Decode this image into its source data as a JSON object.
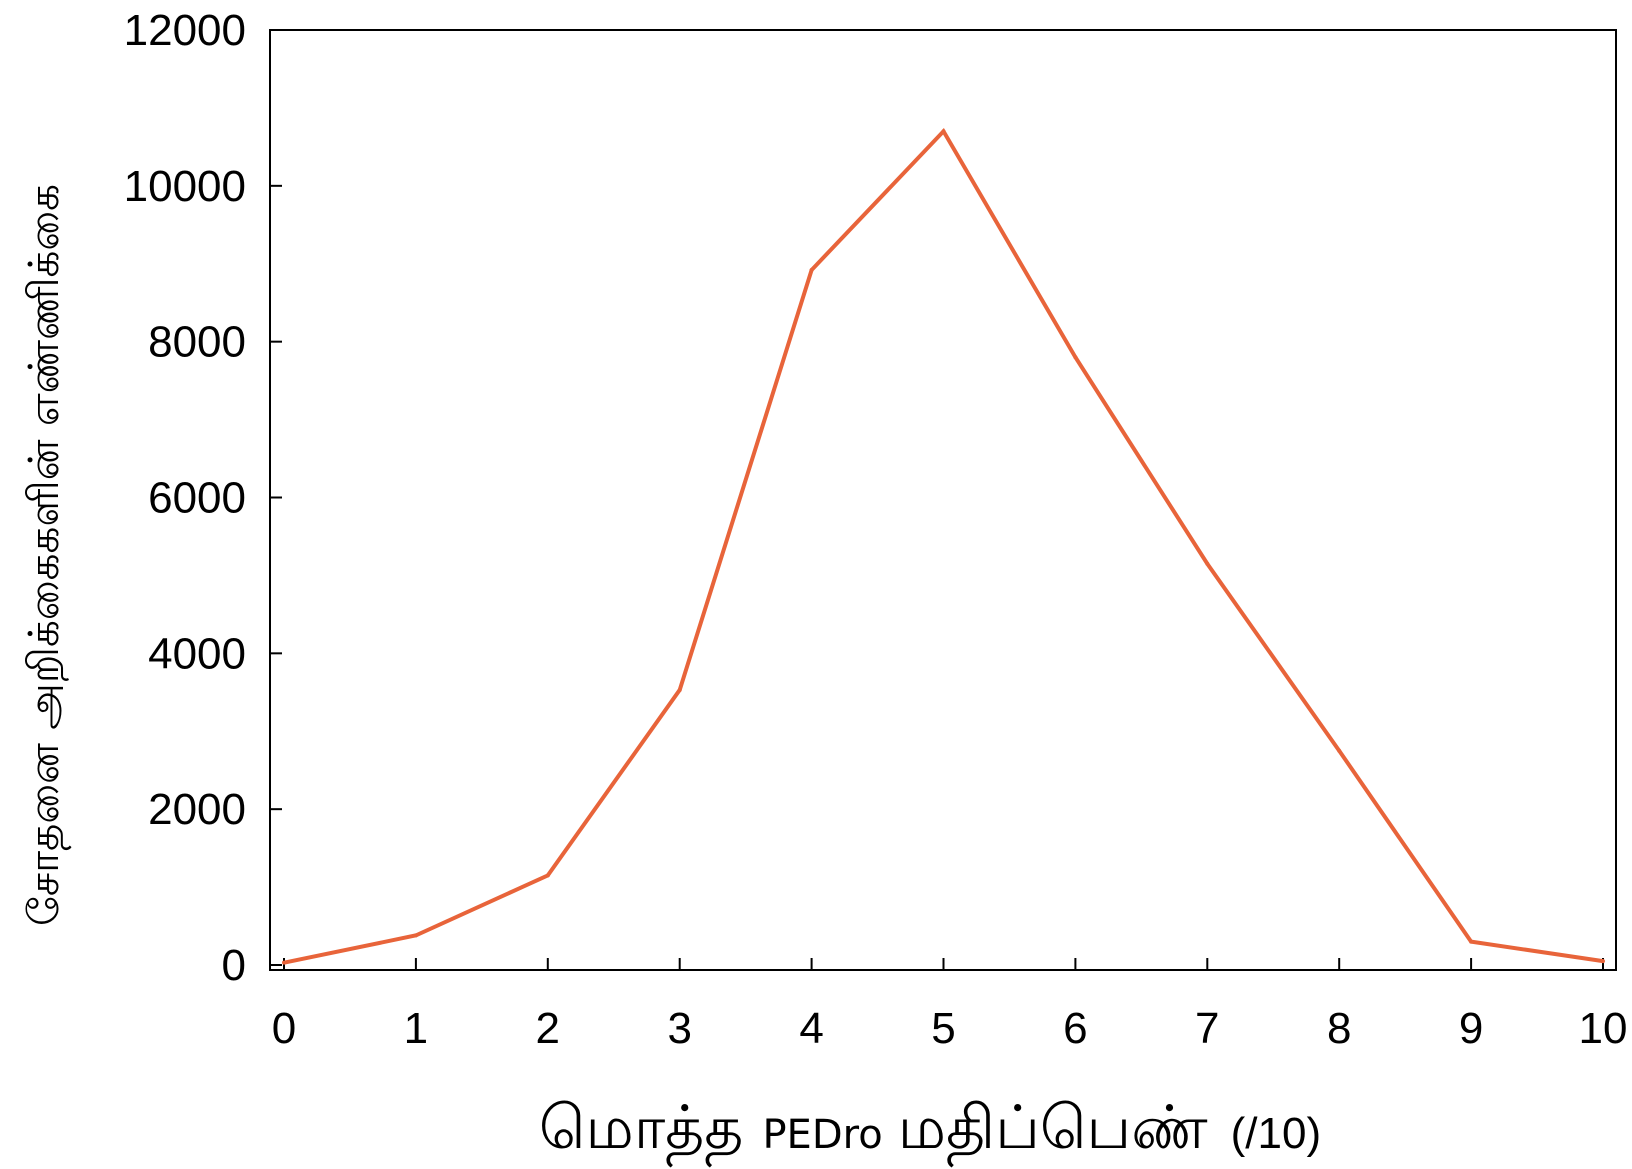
{
  "chart_data": {
    "type": "line",
    "title": "",
    "xlabel": "மொத்த PEDro மதிப்பெண் (/10)",
    "xlabel_parts": {
      "tamil1": "மொத்த",
      "latin": "PEDro",
      "tamil2": "மதிப்பெண்",
      "unit": "(/10)"
    },
    "ylabel": "சோதனை அறிக்கைகளின் எண்ணிக்கை",
    "x": [
      0,
      1,
      2,
      3,
      4,
      5,
      6,
      7,
      8,
      9,
      10
    ],
    "series": [
      {
        "values": [
          30,
          380,
          1150,
          3530,
          8920,
          10700,
          7800,
          5150,
          2750,
          300,
          50
        ],
        "color": "#e8643a"
      }
    ],
    "xlim": [
      0,
      10
    ],
    "ylim": [
      0,
      12000
    ],
    "xticks": [
      0,
      1,
      2,
      3,
      4,
      5,
      6,
      7,
      8,
      9,
      10
    ],
    "yticks": [
      0,
      2000,
      4000,
      6000,
      8000,
      10000,
      12000
    ],
    "grid": false,
    "legend": "none"
  }
}
